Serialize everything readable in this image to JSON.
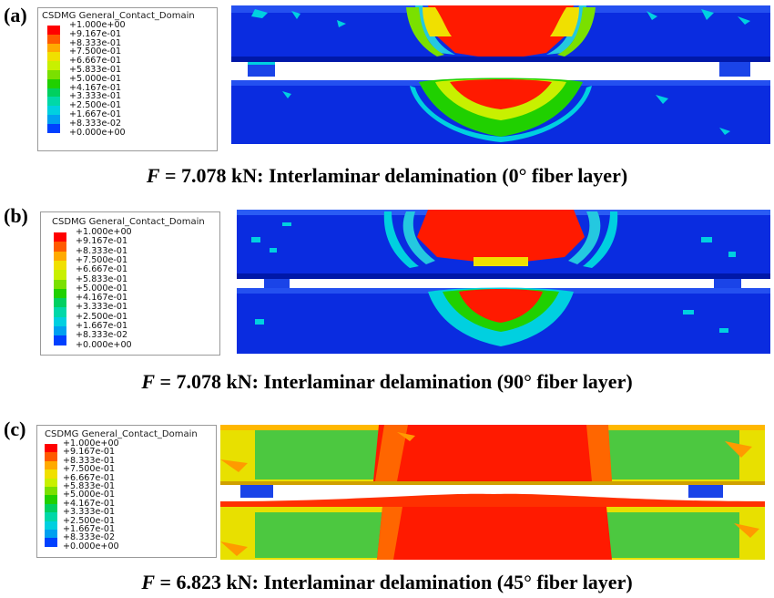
{
  "legend": {
    "title": "CSDMG General_Contact_Domain",
    "values": [
      "+1.000e+00",
      "+9.167e-01",
      "+8.333e-01",
      "+7.500e-01",
      "+6.667e-01",
      "+5.833e-01",
      "+5.000e-01",
      "+4.167e-01",
      "+3.333e-01",
      "+2.500e-01",
      "+1.667e-01",
      "+8.333e-02",
      "+0.000e+00"
    ],
    "colors": [
      "#ff0000",
      "#ff5a00",
      "#ffaa00",
      "#f0e000",
      "#c8f000",
      "#7ae000",
      "#20d000",
      "#00d060",
      "#00d8a8",
      "#00d0e0",
      "#00a0f0",
      "#0040ff",
      "#0000ee"
    ]
  },
  "panels": [
    {
      "label": "(a)",
      "caption_prefix": "F",
      "caption_rest": " = 7.078 kN: Interlaminar delamination (0° fiber layer)"
    },
    {
      "label": "(b)",
      "caption_prefix": "F",
      "caption_rest": " = 7.078 kN: Interlaminar delamination (90° fiber layer)"
    },
    {
      "label": "(c)",
      "caption_prefix": "F",
      "caption_rest": " = 6.823 kN: Interlaminar delamination (45° fiber layer)"
    }
  ]
}
